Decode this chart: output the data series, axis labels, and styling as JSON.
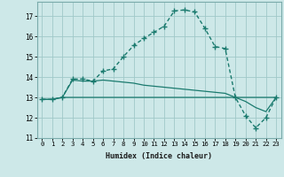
{
  "title": "",
  "xlabel": "Humidex (Indice chaleur)",
  "x_values": [
    0,
    1,
    2,
    3,
    4,
    5,
    6,
    7,
    8,
    9,
    10,
    11,
    12,
    13,
    14,
    15,
    16,
    17,
    18,
    19,
    20,
    21,
    22,
    23
  ],
  "line1_y": [
    12.9,
    12.9,
    13.0,
    13.9,
    13.9,
    13.8,
    14.3,
    14.4,
    15.0,
    15.55,
    15.9,
    16.2,
    16.5,
    17.25,
    17.3,
    17.2,
    16.4,
    15.5,
    15.4,
    13.0,
    12.1,
    11.5,
    12.0,
    13.0
  ],
  "line2_y": [
    12.9,
    12.9,
    13.0,
    13.85,
    13.8,
    13.8,
    13.85,
    13.8,
    13.75,
    13.7,
    13.6,
    13.55,
    13.5,
    13.45,
    13.4,
    13.35,
    13.3,
    13.25,
    13.2,
    13.0,
    12.8,
    12.5,
    12.3,
    13.0
  ],
  "line3_y": [
    12.9,
    12.9,
    13.0,
    13.0,
    13.0,
    13.0,
    13.0,
    13.0,
    13.0,
    13.0,
    13.0,
    13.0,
    13.0,
    13.0,
    13.0,
    13.0,
    13.0,
    13.0,
    13.0,
    13.0,
    13.0,
    13.0,
    13.0,
    13.0
  ],
  "line_color": "#1a7a6e",
  "bg_color": "#cde8e8",
  "grid_color": "#a0c8c8",
  "ylim": [
    11,
    17.7
  ],
  "xlim": [
    -0.5,
    23.5
  ],
  "yticks": [
    11,
    12,
    13,
    14,
    15,
    16,
    17
  ],
  "xticks": [
    0,
    1,
    2,
    3,
    4,
    5,
    6,
    7,
    8,
    9,
    10,
    11,
    12,
    13,
    14,
    15,
    16,
    17,
    18,
    19,
    20,
    21,
    22,
    23
  ],
  "xlabel_fontsize": 6.0,
  "ylabel_fontsize": 6.0,
  "tick_fontsize": 5.2
}
